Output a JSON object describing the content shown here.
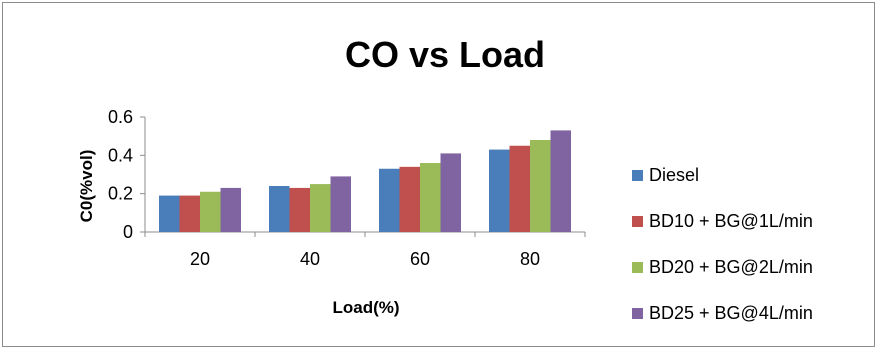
{
  "chart_data": {
    "type": "bar",
    "title": "CO vs Load",
    "xlabel": "Load(%)",
    "ylabel": "C0(%vol)",
    "categories": [
      "20",
      "40",
      "60",
      "80"
    ],
    "ylim": [
      0,
      0.6
    ],
    "yticks": [
      "0",
      "0.2",
      "0.4",
      "0.6"
    ],
    "grid": false,
    "legend_position": "right",
    "series": [
      {
        "name": "Diesel",
        "color": "#4a7ebb",
        "values": [
          0.19,
          0.24,
          0.33,
          0.43
        ]
      },
      {
        "name": "BD10 + BG@1L/min",
        "color": "#c0504d",
        "values": [
          0.19,
          0.23,
          0.34,
          0.45
        ]
      },
      {
        "name": "BD20 + BG@2L/min",
        "color": "#9bbb59",
        "values": [
          0.21,
          0.25,
          0.36,
          0.48
        ]
      },
      {
        "name": "BD25 + BG@4L/min",
        "color": "#8064a2",
        "values": [
          0.23,
          0.29,
          0.41,
          0.53
        ]
      }
    ]
  }
}
